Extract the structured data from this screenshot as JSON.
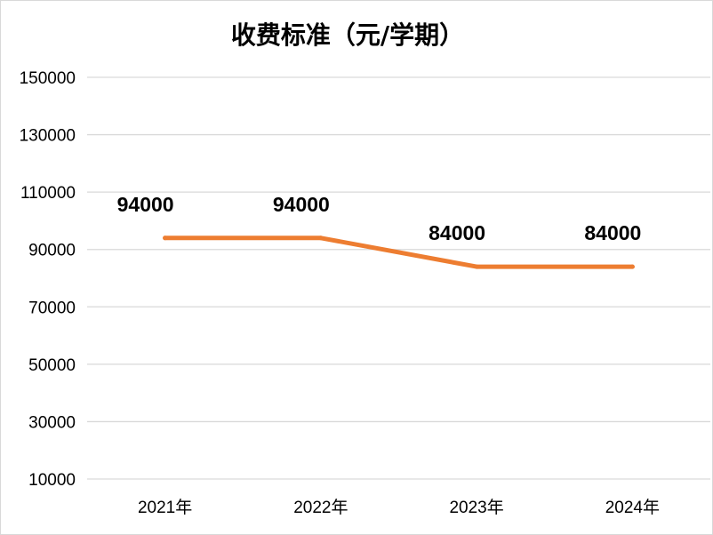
{
  "chart_data": {
    "type": "line",
    "title": "收费标准（元/学期）",
    "categories": [
      "2021年",
      "2022年",
      "2023年",
      "2024年"
    ],
    "series": [
      {
        "values": [
          94000,
          94000,
          84000,
          84000
        ]
      }
    ],
    "data_labels": [
      "94000",
      "94000",
      "84000",
      "84000"
    ],
    "yticks": [
      10000,
      30000,
      50000,
      70000,
      90000,
      110000,
      130000,
      150000
    ],
    "ylim": [
      10000,
      150000
    ],
    "grid": true,
    "legend": "none",
    "colors": {
      "line": "#ED7D31",
      "grid": "#D9D9D9",
      "text": "#000000"
    }
  }
}
